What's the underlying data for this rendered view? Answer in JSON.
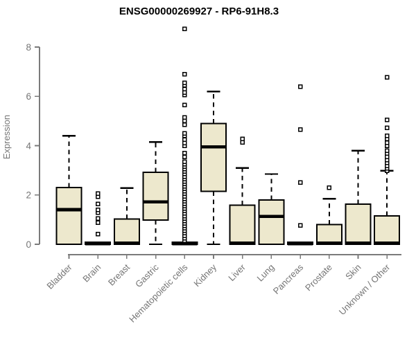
{
  "chart_data": {
    "type": "boxplot",
    "title": "ENSG00000269927 - RP6-91H8.3",
    "ylabel": "Expression",
    "xlabel": "",
    "ylim": [
      0,
      8.8
    ],
    "yticks": [
      0,
      2,
      4,
      6,
      8
    ],
    "grid": false,
    "legend": "none",
    "categories": [
      "Bladder",
      "Brain",
      "Breast",
      "Gastric",
      "Hematopoietic cells",
      "Kidney",
      "Liver",
      "Lung",
      "Pancreas",
      "Prostate",
      "Skin",
      "Unknown / Other"
    ],
    "boxes": [
      {
        "category": "Bladder",
        "low": 0,
        "q1": 0,
        "median": 1.4,
        "q3": 2.3,
        "high": 4.4,
        "outliers": []
      },
      {
        "category": "Brain",
        "low": 0,
        "q1": 0,
        "median": 0.03,
        "q3": 0.08,
        "high": 0.08,
        "outliers": [
          0.42,
          0.88,
          1.04,
          1.28,
          1.4,
          1.63,
          1.93,
          2.05
        ]
      },
      {
        "category": "Breast",
        "low": 0,
        "q1": 0,
        "median": 0.04,
        "q3": 1.02,
        "high": 2.28,
        "outliers": []
      },
      {
        "category": "Gastric",
        "low": 0,
        "q1": 0.98,
        "median": 1.72,
        "q3": 2.92,
        "high": 4.15,
        "outliers": []
      },
      {
        "category": "Hematopoietic cells",
        "low": 0,
        "q1": 0,
        "median": 0.03,
        "q3": 0.08,
        "high": 0.08,
        "outliers": [
          0.15,
          0.25,
          0.35,
          0.45,
          0.55,
          0.65,
          0.75,
          0.85,
          0.95,
          1.05,
          1.15,
          1.25,
          1.35,
          1.45,
          1.55,
          1.65,
          1.75,
          1.85,
          1.95,
          2.05,
          2.15,
          2.25,
          2.35,
          2.45,
          2.55,
          2.65,
          2.75,
          2.85,
          2.95,
          3.05,
          3.15,
          3.25,
          3.35,
          3.55,
          3.7,
          4.0,
          4.1,
          4.25,
          4.4,
          4.5,
          4.85,
          5.0,
          5.15,
          5.65,
          6.05,
          6.15,
          6.3,
          6.45,
          6.55,
          6.9,
          8.73
        ]
      },
      {
        "category": "Kidney",
        "low": 0,
        "q1": 2.15,
        "median": 3.95,
        "q3": 4.9,
        "high": 6.2,
        "outliers": []
      },
      {
        "category": "Liver",
        "low": 0,
        "q1": 0,
        "median": 0.04,
        "q3": 1.58,
        "high": 3.1,
        "outliers": [
          4.13,
          4.27
        ]
      },
      {
        "category": "Lung",
        "low": 0,
        "q1": 0,
        "median": 1.13,
        "q3": 1.8,
        "high": 2.85,
        "outliers": []
      },
      {
        "category": "Pancreas",
        "low": 0,
        "q1": 0,
        "median": 0.03,
        "q3": 0.08,
        "high": 0.08,
        "outliers": [
          0.76,
          2.5,
          4.65,
          6.4
        ]
      },
      {
        "category": "Prostate",
        "low": 0,
        "q1": 0,
        "median": 0.04,
        "q3": 0.8,
        "high": 1.85,
        "outliers": [
          2.3
        ]
      },
      {
        "category": "Skin",
        "low": 0,
        "q1": 0,
        "median": 0.04,
        "q3": 1.63,
        "high": 3.8,
        "outliers": []
      },
      {
        "category": "Unknown / Other",
        "low": 0,
        "q1": 0,
        "median": 0.04,
        "q3": 1.15,
        "high": 2.98,
        "outliers": [
          2.98,
          3.08,
          3.18,
          3.3,
          3.42,
          3.55,
          3.68,
          3.8,
          4.0,
          4.12,
          4.27,
          4.4,
          4.72,
          5.05,
          6.77
        ]
      }
    ],
    "colors": {
      "box_fill": "#EDE8CD",
      "box_border": "#000000",
      "median": "#000000",
      "whisker": "#000000",
      "outlier_stroke": "#000000",
      "outlier_fill": "#FFFFFF",
      "axis_line": "#7A7A7A",
      "axis_text": "#757575",
      "title": "#000000",
      "background": "#FFFFFF"
    }
  }
}
